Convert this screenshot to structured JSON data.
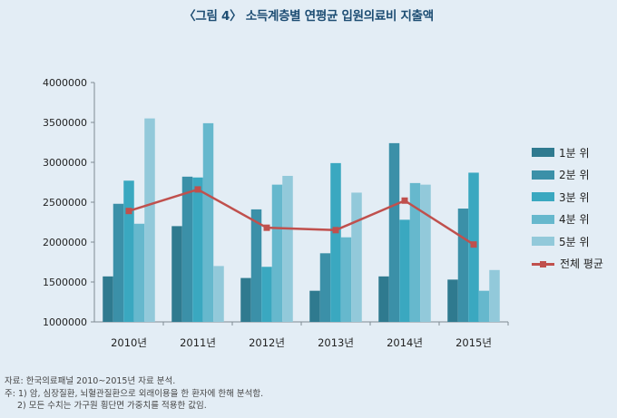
{
  "title": "〈그림 4〉 소득계층별 연평균 입원의료비 지출액",
  "chart_data": {
    "type": "bar",
    "categories": [
      "2010년",
      "2011년",
      "2012년",
      "2013년",
      "2014년",
      "2015년"
    ],
    "series": [
      {
        "name": "1분 위",
        "color": "#2f7a8f",
        "values": [
          1570000,
          2200000,
          1550000,
          1390000,
          1570000,
          1530000
        ]
      },
      {
        "name": "2분 위",
        "color": "#3b90a8",
        "values": [
          2480000,
          2820000,
          2410000,
          1860000,
          3240000,
          2420000
        ]
      },
      {
        "name": "3분 위",
        "color": "#3aa8c0",
        "values": [
          2770000,
          2810000,
          1690000,
          2990000,
          2280000,
          2870000
        ]
      },
      {
        "name": "4분 위",
        "color": "#66b8cd",
        "values": [
          2230000,
          3490000,
          2720000,
          2060000,
          2740000,
          1390000
        ]
      },
      {
        "name": "5분 위",
        "color": "#92c9da",
        "values": [
          3550000,
          1700000,
          2830000,
          2620000,
          2720000,
          1650000
        ]
      }
    ],
    "line": {
      "name": "전체 평균",
      "color": "#c0504d",
      "values": [
        2390000,
        2660000,
        2180000,
        2150000,
        2520000,
        1970000
      ]
    },
    "ylim": [
      1000000,
      4000000
    ],
    "yticks": [
      "1000000",
      "1500000",
      "2000000",
      "2500000",
      "3000000",
      "3500000",
      "4000000"
    ],
    "legend_position": "right",
    "grid": false
  },
  "notes": [
    "자료: 한국의료패널 2010~2015년 자료 분석.",
    "주: 1) 암, 심장질환, 뇌혈관질환으로 외래이용을 한 환자에 한해 분석함.",
    "2) 모든 수치는 가구원 횡단면 가중치를 적용한 값임."
  ]
}
